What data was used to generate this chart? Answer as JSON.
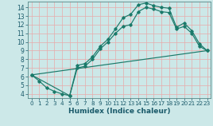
{
  "xlabel": "Humidex (Indice chaleur)",
  "bg_color": "#cce8e8",
  "grid_color": "#e8aaaa",
  "line_color": "#1a7a6a",
  "xlim": [
    -0.5,
    23.5
  ],
  "ylim": [
    3.5,
    14.7
  ],
  "xticks": [
    0,
    1,
    2,
    3,
    4,
    5,
    6,
    7,
    8,
    9,
    10,
    11,
    12,
    13,
    14,
    15,
    16,
    17,
    18,
    19,
    20,
    21,
    22,
    23
  ],
  "yticks": [
    4,
    5,
    6,
    7,
    8,
    9,
    10,
    11,
    12,
    13,
    14
  ],
  "curve1_x": [
    0,
    1,
    2,
    3,
    4,
    5,
    6,
    7,
    8,
    9,
    10,
    11,
    12,
    13,
    14,
    15,
    16,
    17,
    18,
    19,
    20,
    21,
    22,
    23
  ],
  "curve1_y": [
    6.2,
    5.5,
    4.7,
    4.3,
    4.0,
    3.8,
    7.3,
    7.5,
    8.3,
    9.5,
    10.3,
    11.5,
    12.8,
    13.2,
    14.3,
    14.5,
    14.2,
    14.0,
    13.9,
    11.7,
    12.2,
    11.3,
    9.8,
    9.0
  ],
  "curve2_x": [
    0,
    5,
    6,
    7,
    8,
    9,
    10,
    11,
    12,
    13,
    14,
    15,
    16,
    17,
    18,
    19,
    20,
    21,
    22,
    23
  ],
  "curve2_y": [
    6.2,
    3.8,
    7.0,
    7.2,
    8.0,
    9.2,
    10.0,
    11.0,
    11.8,
    12.0,
    13.5,
    14.0,
    13.8,
    13.5,
    13.4,
    11.5,
    11.8,
    11.0,
    9.5,
    9.0
  ],
  "curve3_x": [
    0,
    23
  ],
  "curve3_y": [
    6.2,
    9.0
  ]
}
